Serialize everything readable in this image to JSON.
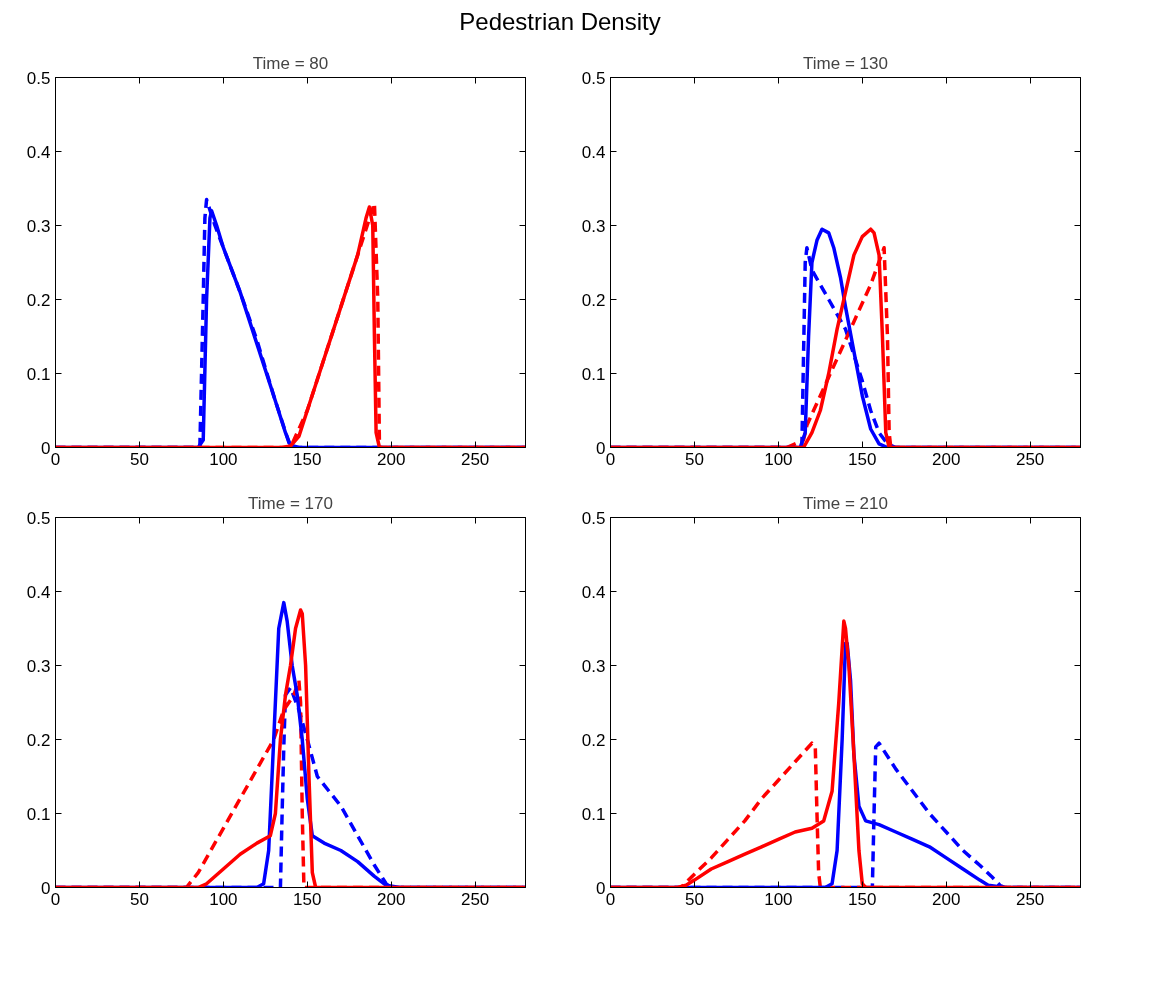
{
  "chart_data": [
    {
      "type": "line",
      "title": "Time = 80",
      "annotations": [
        "Pedestrian Density"
      ],
      "xlim": [
        0,
        280
      ],
      "xticks": [
        0,
        50,
        100,
        150,
        200,
        250
      ],
      "ylim": [
        0,
        0.5
      ],
      "yticks": [
        0,
        0.1,
        0.2,
        0.3,
        0.4,
        0.5
      ],
      "series": [
        {
          "color": "#0000ff",
          "line_style": "dashed",
          "x": [
            0,
            86,
            88,
            89,
            90,
            95,
            110,
            120,
            130,
            140,
            280
          ],
          "values": [
            0,
            0,
            0.2,
            0.31,
            0.335,
            0.3,
            0.21,
            0.145,
            0.07,
            0,
            0
          ]
        },
        {
          "color": "#ff0000",
          "line_style": "dashed",
          "x": [
            0,
            140,
            150,
            160,
            170,
            180,
            190,
            192,
            193,
            280
          ],
          "values": [
            0,
            0,
            0.05,
            0.12,
            0.19,
            0.26,
            0.33,
            0.2,
            0,
            0
          ]
        },
        {
          "color": "#0000ff",
          "line_style": "solid",
          "x": [
            0,
            85,
            88,
            90,
            92,
            93,
            96,
            100,
            110,
            120,
            130,
            137,
            140,
            145,
            280
          ],
          "values": [
            0,
            0,
            0.01,
            0.2,
            0.31,
            0.32,
            0.3,
            0.27,
            0.21,
            0.14,
            0.07,
            0.02,
            0.003,
            0,
            0
          ]
        },
        {
          "color": "#ff0000",
          "line_style": "solid",
          "x": [
            0,
            135,
            140,
            145,
            150,
            160,
            170,
            180,
            185,
            187,
            189,
            190,
            191,
            193,
            280
          ],
          "values": [
            0,
            0,
            0.002,
            0.015,
            0.05,
            0.12,
            0.19,
            0.26,
            0.31,
            0.325,
            0.3,
            0.15,
            0.02,
            0,
            0
          ]
        }
      ]
    },
    {
      "type": "line",
      "title": "Time = 130",
      "xlim": [
        0,
        280
      ],
      "xticks": [
        0,
        50,
        100,
        150,
        200,
        250
      ],
      "ylim": [
        0,
        0.5
      ],
      "yticks": [
        0,
        0.1,
        0.2,
        0.3,
        0.4,
        0.5
      ],
      "series": [
        {
          "color": "#0000ff",
          "line_style": "dashed",
          "x": [
            0,
            114,
            116,
            117,
            120,
            130,
            140,
            150,
            155,
            160,
            165,
            170,
            280
          ],
          "values": [
            0,
            0,
            0.25,
            0.27,
            0.24,
            0.2,
            0.16,
            0.09,
            0.05,
            0.02,
            0.005,
            0,
            0
          ]
        },
        {
          "color": "#ff0000",
          "line_style": "dashed",
          "x": [
            0,
            105,
            110,
            115,
            117,
            125,
            135,
            145,
            155,
            163,
            165,
            166,
            167,
            280
          ],
          "values": [
            0,
            0,
            0.005,
            0.01,
            0.03,
            0.07,
            0.12,
            0.17,
            0.22,
            0.27,
            0.15,
            0.02,
            0,
            0
          ]
        },
        {
          "color": "#0000ff",
          "line_style": "solid",
          "x": [
            0,
            113,
            116,
            118,
            120,
            123,
            126,
            130,
            133,
            137,
            140,
            145,
            150,
            155,
            160,
            165,
            280
          ],
          "values": [
            0,
            0,
            0.02,
            0.15,
            0.25,
            0.28,
            0.295,
            0.29,
            0.27,
            0.23,
            0.19,
            0.13,
            0.07,
            0.025,
            0.005,
            0,
            0
          ]
        },
        {
          "color": "#ff0000",
          "line_style": "solid",
          "x": [
            0,
            115,
            120,
            125,
            130,
            135,
            140,
            145,
            150,
            155,
            157,
            160,
            162,
            164,
            166,
            280
          ],
          "values": [
            0,
            0,
            0.02,
            0.05,
            0.1,
            0.16,
            0.21,
            0.26,
            0.285,
            0.295,
            0.29,
            0.26,
            0.15,
            0.02,
            0,
            0
          ]
        }
      ]
    },
    {
      "type": "line",
      "title": "Time = 170",
      "xlim": [
        0,
        280
      ],
      "xticks": [
        0,
        50,
        100,
        150,
        200,
        250
      ],
      "ylim": [
        0,
        0.5
      ],
      "yticks": [
        0,
        0.1,
        0.2,
        0.3,
        0.4,
        0.5
      ],
      "series": [
        {
          "color": "#0000ff",
          "line_style": "dashed",
          "x": [
            0,
            134,
            135,
            136,
            137,
            140,
            145,
            150,
            156,
            170,
            180,
            190,
            197,
            200,
            280
          ],
          "values": [
            0,
            0,
            0.1,
            0.19,
            0.26,
            0.27,
            0.24,
            0.2,
            0.15,
            0.11,
            0.07,
            0.03,
            0.005,
            0,
            0
          ]
        },
        {
          "color": "#ff0000",
          "line_style": "dashed",
          "x": [
            0,
            78,
            85,
            100,
            110,
            120,
            130,
            136,
            142,
            145,
            146,
            147,
            148,
            280
          ],
          "values": [
            0,
            0,
            0.02,
            0.08,
            0.12,
            0.16,
            0.2,
            0.24,
            0.26,
            0.28,
            0.25,
            0.1,
            0,
            0
          ]
        },
        {
          "color": "#0000ff",
          "line_style": "solid",
          "x": [
            0,
            120,
            124,
            127,
            130,
            133,
            136,
            138,
            141,
            144,
            147,
            150,
            153,
            160,
            170,
            180,
            190,
            197,
            205,
            280
          ],
          "values": [
            0,
            0,
            0.005,
            0.05,
            0.2,
            0.35,
            0.385,
            0.36,
            0.3,
            0.26,
            0.2,
            0.12,
            0.07,
            0.06,
            0.05,
            0.035,
            0.015,
            0.003,
            0,
            0
          ]
        },
        {
          "color": "#ff0000",
          "line_style": "solid",
          "x": [
            0,
            85,
            90,
            100,
            110,
            120,
            128,
            131,
            134,
            137,
            140,
            143,
            146,
            147,
            149,
            151,
            153,
            155,
            280
          ],
          "values": [
            0,
            0,
            0.005,
            0.025,
            0.045,
            0.06,
            0.07,
            0.1,
            0.2,
            0.26,
            0.3,
            0.35,
            0.375,
            0.37,
            0.3,
            0.15,
            0.02,
            0,
            0
          ]
        }
      ]
    },
    {
      "type": "line",
      "title": "Time = 210",
      "xlim": [
        0,
        280
      ],
      "xticks": [
        0,
        50,
        100,
        150,
        200,
        250
      ],
      "ylim": [
        0,
        0.5
      ],
      "yticks": [
        0,
        0.1,
        0.2,
        0.3,
        0.4,
        0.5
      ],
      "series": [
        {
          "color": "#0000ff",
          "line_style": "dashed",
          "x": [
            0,
            156,
            157,
            158,
            160,
            170,
            180,
            190,
            200,
            210,
            220,
            227,
            232,
            235,
            280
          ],
          "values": [
            0,
            0,
            0.1,
            0.19,
            0.195,
            0.16,
            0.13,
            0.1,
            0.075,
            0.05,
            0.03,
            0.015,
            0.003,
            0,
            0
          ]
        },
        {
          "color": "#ff0000",
          "line_style": "dashed",
          "x": [
            0,
            42,
            50,
            60,
            70,
            80,
            90,
            100,
            110,
            120,
            122,
            123,
            124,
            125,
            280
          ],
          "values": [
            0,
            0,
            0.018,
            0.04,
            0.065,
            0.09,
            0.12,
            0.145,
            0.17,
            0.195,
            0.19,
            0.1,
            0.02,
            0,
            0
          ]
        },
        {
          "color": "#0000ff",
          "line_style": "solid",
          "x": [
            0,
            128,
            132,
            135,
            138,
            140,
            141,
            143,
            145,
            148,
            152,
            160,
            170,
            180,
            190,
            200,
            210,
            220,
            225,
            235,
            280
          ],
          "values": [
            0,
            0,
            0.005,
            0.05,
            0.2,
            0.33,
            0.33,
            0.28,
            0.18,
            0.11,
            0.09,
            0.085,
            0.075,
            0.065,
            0.055,
            0.04,
            0.025,
            0.01,
            0.003,
            0,
            0
          ]
        },
        {
          "color": "#ff0000",
          "line_style": "solid",
          "x": [
            0,
            40,
            45,
            50,
            60,
            70,
            80,
            90,
            100,
            110,
            120,
            127,
            132,
            136,
            139,
            140,
            142,
            145,
            148,
            150,
            152,
            280
          ],
          "values": [
            0,
            0,
            0.003,
            0.01,
            0.025,
            0.035,
            0.045,
            0.055,
            0.065,
            0.075,
            0.08,
            0.09,
            0.13,
            0.25,
            0.36,
            0.35,
            0.3,
            0.18,
            0.05,
            0.005,
            0,
            0
          ]
        }
      ]
    }
  ]
}
